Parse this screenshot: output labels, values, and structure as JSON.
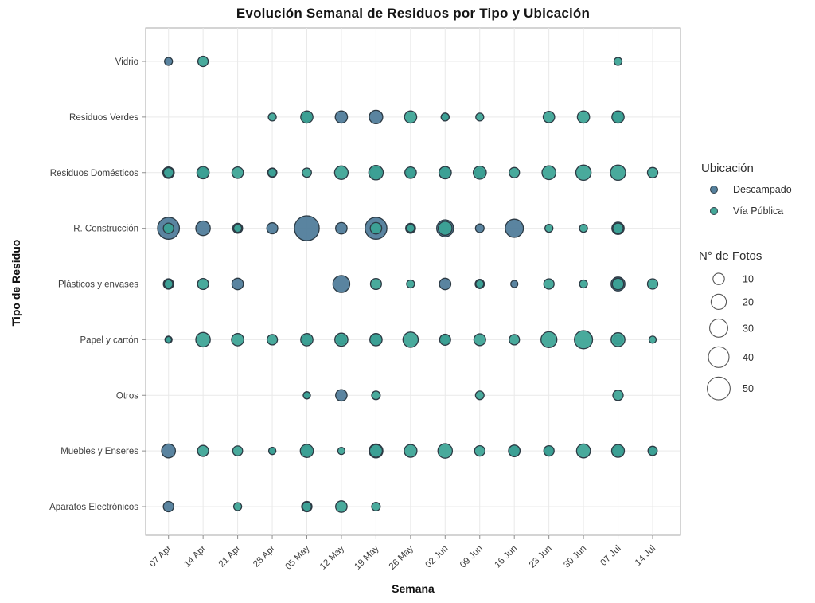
{
  "title": "Evolución Semanal de Residuos por Tipo y Ubicación",
  "legend": {
    "location_title": "Ubicación",
    "size_title": "N° de Fotos",
    "size_values": [
      10,
      20,
      30,
      40,
      50
    ],
    "location_items": [
      {
        "label": "Descampado",
        "color": "#4c7a98"
      },
      {
        "label": "Vía Pública",
        "color": "#3aa394"
      }
    ]
  },
  "chart_data": {
    "type": "scatter",
    "subtype": "bubble",
    "title": "Evolución Semanal de Residuos por Tipo y Ubicación",
    "xlabel": "Semana",
    "ylabel": "Tipo de Residuo",
    "grid": true,
    "legend_position": "right",
    "size_legend": {
      "label": "N° de Fotos",
      "values": [
        10,
        20,
        30,
        40,
        50
      ]
    },
    "x_categories": [
      "07 Apr",
      "14 Apr",
      "21 Apr",
      "28 Apr",
      "05 May",
      "12 May",
      "19 May",
      "26 May",
      "02 Jun",
      "09 Jun",
      "16 Jun",
      "23 Jun",
      "30 Jun",
      "07 Jul",
      "14 Jul"
    ],
    "y_categories": [
      "Vidrio",
      "Residuos Verdes",
      "Residuos Domésticos",
      "R. Construcción",
      "Plásticos y envases",
      "Papel y cartón",
      "Otros",
      "Muebles y Enseres",
      "Aparatos Electrónicos"
    ],
    "point_format": [
      "x_index(week)",
      "y_index(type)",
      "photos"
    ],
    "series": [
      {
        "name": "Descampado",
        "color": "#4c7a98",
        "points": [
          [
            0,
            0,
            4
          ],
          [
            4,
            1,
            6
          ],
          [
            5,
            1,
            12
          ],
          [
            6,
            1,
            15
          ],
          [
            8,
            1,
            4
          ],
          [
            13,
            1,
            7
          ],
          [
            0,
            2,
            10
          ],
          [
            1,
            2,
            7
          ],
          [
            3,
            2,
            6
          ],
          [
            6,
            2,
            10
          ],
          [
            7,
            2,
            6
          ],
          [
            8,
            2,
            12
          ],
          [
            9,
            2,
            6
          ],
          [
            0,
            3,
            45
          ],
          [
            1,
            3,
            18
          ],
          [
            2,
            3,
            7
          ],
          [
            3,
            3,
            9
          ],
          [
            4,
            3,
            60
          ],
          [
            5,
            3,
            10
          ],
          [
            6,
            3,
            45
          ],
          [
            7,
            3,
            7
          ],
          [
            8,
            3,
            25
          ],
          [
            9,
            3,
            5
          ],
          [
            10,
            3,
            30
          ],
          [
            13,
            3,
            12
          ],
          [
            0,
            4,
            8
          ],
          [
            2,
            4,
            10
          ],
          [
            5,
            4,
            25
          ],
          [
            8,
            4,
            10
          ],
          [
            9,
            4,
            6
          ],
          [
            10,
            4,
            3
          ],
          [
            13,
            4,
            16
          ],
          [
            0,
            5,
            3
          ],
          [
            4,
            5,
            6
          ],
          [
            5,
            5,
            6
          ],
          [
            6,
            5,
            9
          ],
          [
            8,
            5,
            5
          ],
          [
            13,
            5,
            6
          ],
          [
            4,
            6,
            3
          ],
          [
            5,
            6,
            10
          ],
          [
            0,
            7,
            16
          ],
          [
            3,
            7,
            3
          ],
          [
            4,
            7,
            8
          ],
          [
            6,
            7,
            16
          ],
          [
            10,
            7,
            10
          ],
          [
            11,
            7,
            5
          ],
          [
            13,
            7,
            8
          ],
          [
            14,
            7,
            4
          ],
          [
            0,
            8,
            8
          ],
          [
            4,
            8,
            8
          ]
        ]
      },
      {
        "name": "Vía Pública",
        "color": "#3aa394",
        "points": [
          [
            1,
            0,
            8
          ],
          [
            13,
            0,
            4
          ],
          [
            3,
            1,
            4
          ],
          [
            4,
            1,
            12
          ],
          [
            7,
            1,
            12
          ],
          [
            8,
            1,
            4
          ],
          [
            9,
            1,
            4
          ],
          [
            11,
            1,
            10
          ],
          [
            12,
            1,
            12
          ],
          [
            13,
            1,
            12
          ],
          [
            0,
            2,
            7
          ],
          [
            1,
            2,
            12
          ],
          [
            2,
            2,
            10
          ],
          [
            3,
            2,
            5
          ],
          [
            4,
            2,
            6
          ],
          [
            5,
            2,
            15
          ],
          [
            6,
            2,
            18
          ],
          [
            7,
            2,
            10
          ],
          [
            8,
            2,
            12
          ],
          [
            9,
            2,
            14
          ],
          [
            10,
            2,
            8
          ],
          [
            11,
            2,
            16
          ],
          [
            12,
            2,
            20
          ],
          [
            13,
            2,
            20
          ],
          [
            14,
            2,
            8
          ],
          [
            0,
            3,
            8
          ],
          [
            2,
            3,
            4
          ],
          [
            6,
            3,
            10
          ],
          [
            7,
            3,
            4
          ],
          [
            8,
            3,
            16
          ],
          [
            11,
            3,
            4
          ],
          [
            12,
            3,
            4
          ],
          [
            13,
            3,
            8
          ],
          [
            0,
            4,
            5
          ],
          [
            1,
            4,
            9
          ],
          [
            6,
            4,
            9
          ],
          [
            7,
            4,
            4
          ],
          [
            9,
            4,
            4
          ],
          [
            11,
            4,
            8
          ],
          [
            12,
            4,
            4
          ],
          [
            13,
            4,
            10
          ],
          [
            14,
            4,
            8
          ],
          [
            0,
            5,
            2
          ],
          [
            1,
            5,
            18
          ],
          [
            2,
            5,
            12
          ],
          [
            3,
            5,
            8
          ],
          [
            4,
            5,
            12
          ],
          [
            5,
            5,
            14
          ],
          [
            6,
            5,
            12
          ],
          [
            7,
            5,
            20
          ],
          [
            8,
            5,
            9
          ],
          [
            9,
            5,
            11
          ],
          [
            10,
            5,
            8
          ],
          [
            11,
            5,
            22
          ],
          [
            12,
            5,
            30
          ],
          [
            13,
            5,
            16
          ],
          [
            14,
            5,
            3
          ],
          [
            4,
            6,
            3
          ],
          [
            6,
            6,
            5
          ],
          [
            9,
            6,
            5
          ],
          [
            13,
            6,
            8
          ],
          [
            1,
            7,
            9
          ],
          [
            2,
            7,
            7
          ],
          [
            3,
            7,
            3
          ],
          [
            4,
            7,
            14
          ],
          [
            5,
            7,
            3
          ],
          [
            6,
            7,
            13
          ],
          [
            7,
            7,
            13
          ],
          [
            8,
            7,
            18
          ],
          [
            9,
            7,
            8
          ],
          [
            10,
            7,
            10
          ],
          [
            11,
            7,
            8
          ],
          [
            12,
            7,
            16
          ],
          [
            13,
            7,
            13
          ],
          [
            14,
            7,
            6
          ],
          [
            2,
            8,
            4
          ],
          [
            4,
            8,
            6
          ],
          [
            5,
            8,
            10
          ],
          [
            6,
            8,
            5
          ]
        ]
      }
    ]
  },
  "style": {
    "plot_border_color": "#a9a9a9",
    "gridline_color": "#e9e9e9",
    "bubble_stroke": "#2c3a44",
    "legend_circle_stroke": "#555555"
  }
}
